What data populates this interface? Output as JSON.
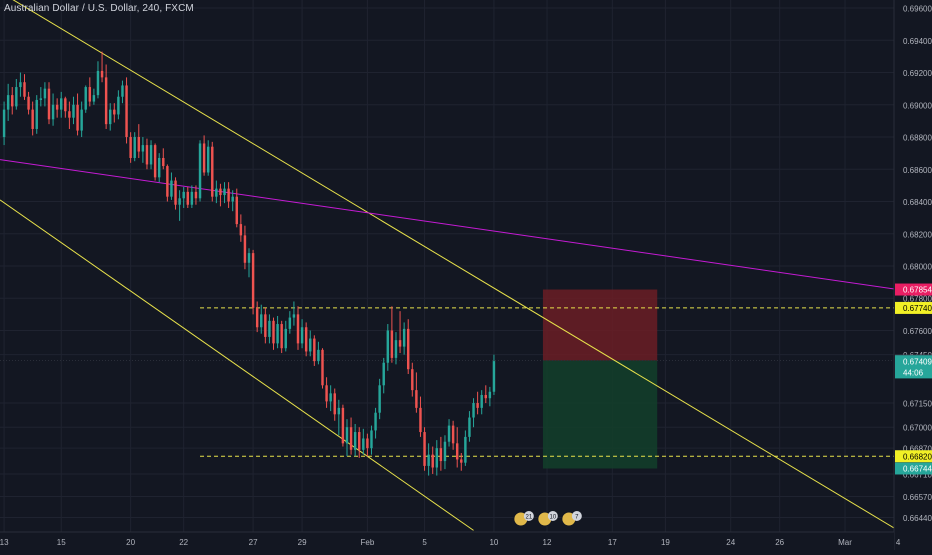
{
  "header": {
    "symbol": "Australian Dollar / U.S. Dollar, 240, FXCM"
  },
  "colors": {
    "background": "#131722",
    "grid": "#1f2330",
    "up": "#26a69a",
    "down": "#ef5350",
    "trendline": "#e8e24b",
    "magenta_line": "#c51bd4",
    "axis_text": "#b2b5be",
    "stop_zone": "#6b1d24",
    "target_zone": "#133d2a"
  },
  "chart_data": {
    "type": "candlestick",
    "grid": true,
    "ylim": [
      0.6635,
      0.6965
    ],
    "x_index_range": [
      -1,
      218
    ],
    "x_ticks": [
      {
        "label": "13",
        "idx": 0
      },
      {
        "label": "15",
        "idx": 14
      },
      {
        "label": "20",
        "idx": 31
      },
      {
        "label": "22",
        "idx": 44
      },
      {
        "label": "27",
        "idx": 61
      },
      {
        "label": "29",
        "idx": 73
      },
      {
        "label": "Feb",
        "idx": 89
      },
      {
        "label": "5",
        "idx": 103
      },
      {
        "label": "10",
        "idx": 120
      },
      {
        "label": "12",
        "idx": 133
      },
      {
        "label": "17",
        "idx": 149
      },
      {
        "label": "19",
        "idx": 162
      },
      {
        "label": "24",
        "idx": 178
      },
      {
        "label": "26",
        "idx": 190
      },
      {
        "label": "Mar",
        "idx": 206
      },
      {
        "label": "4",
        "idx": 219
      }
    ],
    "y_ticks": [
      "0.69600",
      "0.69400",
      "0.69200",
      "0.69000",
      "0.68800",
      "0.68600",
      "0.68400",
      "0.68200",
      "0.68000",
      "0.67800",
      "0.67600",
      "0.67450",
      "0.67150",
      "0.67000",
      "0.66870",
      "0.66710",
      "0.66570",
      "0.66440"
    ],
    "price_labels": [
      {
        "text": "0.67854",
        "value": 0.67854,
        "color": "#e91e63",
        "text_color": "#ffffff"
      },
      {
        "text": "0.67740",
        "value": 0.6774,
        "color": "#f2f026",
        "text_color": "#000000"
      },
      {
        "text": "0.67414",
        "value": 0.67414,
        "color": "#3a3f4b",
        "text_color": "#d1d4dc"
      },
      {
        "text": "0.67409",
        "value": 0.67409,
        "color": "#26a69a",
        "text_color": "#ffffff"
      },
      {
        "text": "44:06",
        "value": 0.6734,
        "color": "#26a69a",
        "text_color": "#ffffff"
      },
      {
        "text": "0.66820",
        "value": 0.6682,
        "color": "#f2f026",
        "text_color": "#000000"
      },
      {
        "text": "0.66744",
        "value": 0.66744,
        "color": "#26a69a",
        "text_color": "#ffffff"
      }
    ],
    "hlines": [
      {
        "value": 0.6774,
        "from_idx": 48,
        "style": "dashed",
        "color": "#e8e24b"
      },
      {
        "value": 0.6682,
        "from_idx": 48,
        "style": "dashed",
        "color": "#e8e24b"
      }
    ],
    "trendlines": [
      {
        "x1": -1,
        "y1": 0.697,
        "x2": 219,
        "y2": 0.6636,
        "color": "#e8e24b"
      },
      {
        "x1": -1,
        "y1": 0.6841,
        "x2": 115,
        "y2": 0.6636,
        "color": "#e8e24b"
      },
      {
        "x1": -1,
        "y1": 0.6866,
        "x2": 219,
        "y2": 0.67854,
        "color": "#c51bd4"
      }
    ],
    "position": {
      "from_idx": 132,
      "to_idx": 160,
      "entry": 0.67414,
      "stop": 0.67854,
      "target": 0.66744
    },
    "event_badges": [
      "21",
      "10",
      "7"
    ],
    "ohlc": [
      [
        0.688,
        0.6902,
        0.6875,
        0.6897
      ],
      [
        0.6897,
        0.6913,
        0.689,
        0.6906
      ],
      [
        0.6906,
        0.6911,
        0.6894,
        0.6899
      ],
      [
        0.6899,
        0.6916,
        0.6897,
        0.6911
      ],
      [
        0.6911,
        0.692,
        0.6905,
        0.6914
      ],
      [
        0.6914,
        0.6919,
        0.6903,
        0.6905
      ],
      [
        0.6905,
        0.6908,
        0.6894,
        0.6897
      ],
      [
        0.6897,
        0.6902,
        0.6881,
        0.6885
      ],
      [
        0.6885,
        0.6906,
        0.6882,
        0.6903
      ],
      [
        0.6903,
        0.6911,
        0.6899,
        0.6904
      ],
      [
        0.6904,
        0.6914,
        0.6899,
        0.691
      ],
      [
        0.691,
        0.6914,
        0.6888,
        0.6891
      ],
      [
        0.6891,
        0.6907,
        0.6887,
        0.69
      ],
      [
        0.69,
        0.6904,
        0.6892,
        0.6897
      ],
      [
        0.6897,
        0.6908,
        0.6892,
        0.6904
      ],
      [
        0.6904,
        0.6905,
        0.6892,
        0.6896
      ],
      [
        0.6896,
        0.6902,
        0.6885,
        0.6892
      ],
      [
        0.6892,
        0.6905,
        0.6888,
        0.69
      ],
      [
        0.69,
        0.6907,
        0.6881,
        0.6884
      ],
      [
        0.6884,
        0.6902,
        0.688,
        0.6897
      ],
      [
        0.6897,
        0.6912,
        0.6895,
        0.6911
      ],
      [
        0.6911,
        0.6917,
        0.6899,
        0.6902
      ],
      [
        0.6902,
        0.691,
        0.69,
        0.6906
      ],
      [
        0.6906,
        0.6927,
        0.6904,
        0.6921
      ],
      [
        0.6921,
        0.6933,
        0.6914,
        0.6917
      ],
      [
        0.6917,
        0.6925,
        0.6885,
        0.6888
      ],
      [
        0.6888,
        0.6901,
        0.6884,
        0.6897
      ],
      [
        0.6897,
        0.6901,
        0.6889,
        0.6894
      ],
      [
        0.6894,
        0.6909,
        0.6891,
        0.6905
      ],
      [
        0.6905,
        0.6915,
        0.6901,
        0.6912
      ],
      [
        0.6912,
        0.6917,
        0.6876,
        0.688
      ],
      [
        0.688,
        0.6883,
        0.6864,
        0.6867
      ],
      [
        0.6867,
        0.6883,
        0.6865,
        0.688
      ],
      [
        0.688,
        0.6888,
        0.6867,
        0.6871
      ],
      [
        0.6871,
        0.688,
        0.6864,
        0.6875
      ],
      [
        0.6875,
        0.6879,
        0.686,
        0.6863
      ],
      [
        0.6863,
        0.6878,
        0.686,
        0.6875
      ],
      [
        0.6875,
        0.6876,
        0.6853,
        0.6855
      ],
      [
        0.6855,
        0.687,
        0.6852,
        0.6867
      ],
      [
        0.6867,
        0.6873,
        0.686,
        0.6862
      ],
      [
        0.6862,
        0.6863,
        0.684,
        0.6843
      ],
      [
        0.6843,
        0.6858,
        0.6841,
        0.6853
      ],
      [
        0.6853,
        0.6855,
        0.6835,
        0.6838
      ],
      [
        0.6838,
        0.6847,
        0.6828,
        0.6842
      ],
      [
        0.6842,
        0.6849,
        0.6836,
        0.6846
      ],
      [
        0.6846,
        0.6849,
        0.6836,
        0.6838
      ],
      [
        0.6838,
        0.685,
        0.6836,
        0.6846
      ],
      [
        0.6846,
        0.685,
        0.6838,
        0.6842
      ],
      [
        0.6842,
        0.6878,
        0.684,
        0.6876
      ],
      [
        0.6876,
        0.6881,
        0.6856,
        0.6858
      ],
      [
        0.6858,
        0.6878,
        0.6856,
        0.6874
      ],
      [
        0.6874,
        0.6877,
        0.684,
        0.6843
      ],
      [
        0.6843,
        0.6853,
        0.6839,
        0.6848
      ],
      [
        0.6848,
        0.6851,
        0.6837,
        0.6844
      ],
      [
        0.6844,
        0.6852,
        0.6839,
        0.6848
      ],
      [
        0.6848,
        0.6852,
        0.6836,
        0.684
      ],
      [
        0.684,
        0.6847,
        0.6834,
        0.6843
      ],
      [
        0.6843,
        0.6848,
        0.6824,
        0.6826
      ],
      [
        0.6826,
        0.6832,
        0.6815,
        0.6819
      ],
      [
        0.6819,
        0.6825,
        0.6798,
        0.6802
      ],
      [
        0.6802,
        0.6811,
        0.6793,
        0.6808
      ],
      [
        0.6808,
        0.681,
        0.677,
        0.6774
      ],
      [
        0.6774,
        0.6778,
        0.6759,
        0.6762
      ],
      [
        0.6762,
        0.6776,
        0.6758,
        0.677
      ],
      [
        0.677,
        0.6774,
        0.6752,
        0.6756
      ],
      [
        0.6756,
        0.677,
        0.6752,
        0.6766
      ],
      [
        0.6766,
        0.6768,
        0.6748,
        0.6752
      ],
      [
        0.6752,
        0.6769,
        0.6749,
        0.6764
      ],
      [
        0.6764,
        0.6766,
        0.6746,
        0.6749
      ],
      [
        0.6749,
        0.6766,
        0.6747,
        0.6761
      ],
      [
        0.6761,
        0.6772,
        0.6758,
        0.6768
      ],
      [
        0.6768,
        0.6778,
        0.6763,
        0.677
      ],
      [
        0.677,
        0.6775,
        0.6748,
        0.6752
      ],
      [
        0.6752,
        0.6767,
        0.6749,
        0.6762
      ],
      [
        0.6762,
        0.6765,
        0.6744,
        0.6747
      ],
      [
        0.6747,
        0.676,
        0.6744,
        0.6755
      ],
      [
        0.6755,
        0.6757,
        0.6738,
        0.6741
      ],
      [
        0.6741,
        0.6753,
        0.6739,
        0.6748
      ],
      [
        0.6748,
        0.6749,
        0.6724,
        0.6726
      ],
      [
        0.6726,
        0.6731,
        0.6712,
        0.6716
      ],
      [
        0.6716,
        0.6726,
        0.671,
        0.6721
      ],
      [
        0.6721,
        0.6724,
        0.6704,
        0.6708
      ],
      [
        0.6708,
        0.6717,
        0.6695,
        0.6712
      ],
      [
        0.6712,
        0.6714,
        0.6688,
        0.669
      ],
      [
        0.669,
        0.6705,
        0.6682,
        0.67
      ],
      [
        0.67,
        0.6706,
        0.6683,
        0.6686
      ],
      [
        0.6686,
        0.6702,
        0.6682,
        0.6697
      ],
      [
        0.6697,
        0.67,
        0.6681,
        0.6686
      ],
      [
        0.6686,
        0.6699,
        0.6683,
        0.6693
      ],
      [
        0.6693,
        0.6696,
        0.6682,
        0.6687
      ],
      [
        0.6687,
        0.6701,
        0.6683,
        0.6698
      ],
      [
        0.6698,
        0.6712,
        0.6693,
        0.6709
      ],
      [
        0.6709,
        0.673,
        0.6705,
        0.6726
      ],
      [
        0.6726,
        0.6743,
        0.6721,
        0.674
      ],
      [
        0.674,
        0.6764,
        0.6735,
        0.676
      ],
      [
        0.676,
        0.6775,
        0.674,
        0.6743
      ],
      [
        0.6743,
        0.6759,
        0.6739,
        0.6754
      ],
      [
        0.6754,
        0.6772,
        0.6746,
        0.675
      ],
      [
        0.675,
        0.6765,
        0.6745,
        0.6761
      ],
      [
        0.6761,
        0.6767,
        0.6733,
        0.6736
      ],
      [
        0.6736,
        0.674,
        0.6719,
        0.6723
      ],
      [
        0.6723,
        0.6734,
        0.6709,
        0.6712
      ],
      [
        0.6712,
        0.6719,
        0.6694,
        0.6697
      ],
      [
        0.6697,
        0.67,
        0.6673,
        0.6676
      ],
      [
        0.6676,
        0.669,
        0.667,
        0.6683
      ],
      [
        0.6683,
        0.6688,
        0.6671,
        0.6675
      ],
      [
        0.6675,
        0.6692,
        0.667,
        0.6687
      ],
      [
        0.6687,
        0.6694,
        0.6673,
        0.6679
      ],
      [
        0.6679,
        0.6695,
        0.6674,
        0.6691
      ],
      [
        0.6691,
        0.6705,
        0.6688,
        0.6701
      ],
      [
        0.6701,
        0.6704,
        0.6686,
        0.669
      ],
      [
        0.669,
        0.67,
        0.6675,
        0.668
      ],
      [
        0.668,
        0.6684,
        0.6673,
        0.6678
      ],
      [
        0.6678,
        0.6698,
        0.6676,
        0.6694
      ],
      [
        0.6694,
        0.671,
        0.6691,
        0.6706
      ],
      [
        0.6706,
        0.6718,
        0.67,
        0.6715
      ],
      [
        0.6715,
        0.6722,
        0.6708,
        0.6712
      ],
      [
        0.6712,
        0.6723,
        0.6708,
        0.672
      ],
      [
        0.672,
        0.6726,
        0.6715,
        0.6718
      ],
      [
        0.6718,
        0.6725,
        0.6713,
        0.6722
      ],
      [
        0.6722,
        0.6745,
        0.672,
        0.6741
      ]
    ]
  },
  "footer": {}
}
